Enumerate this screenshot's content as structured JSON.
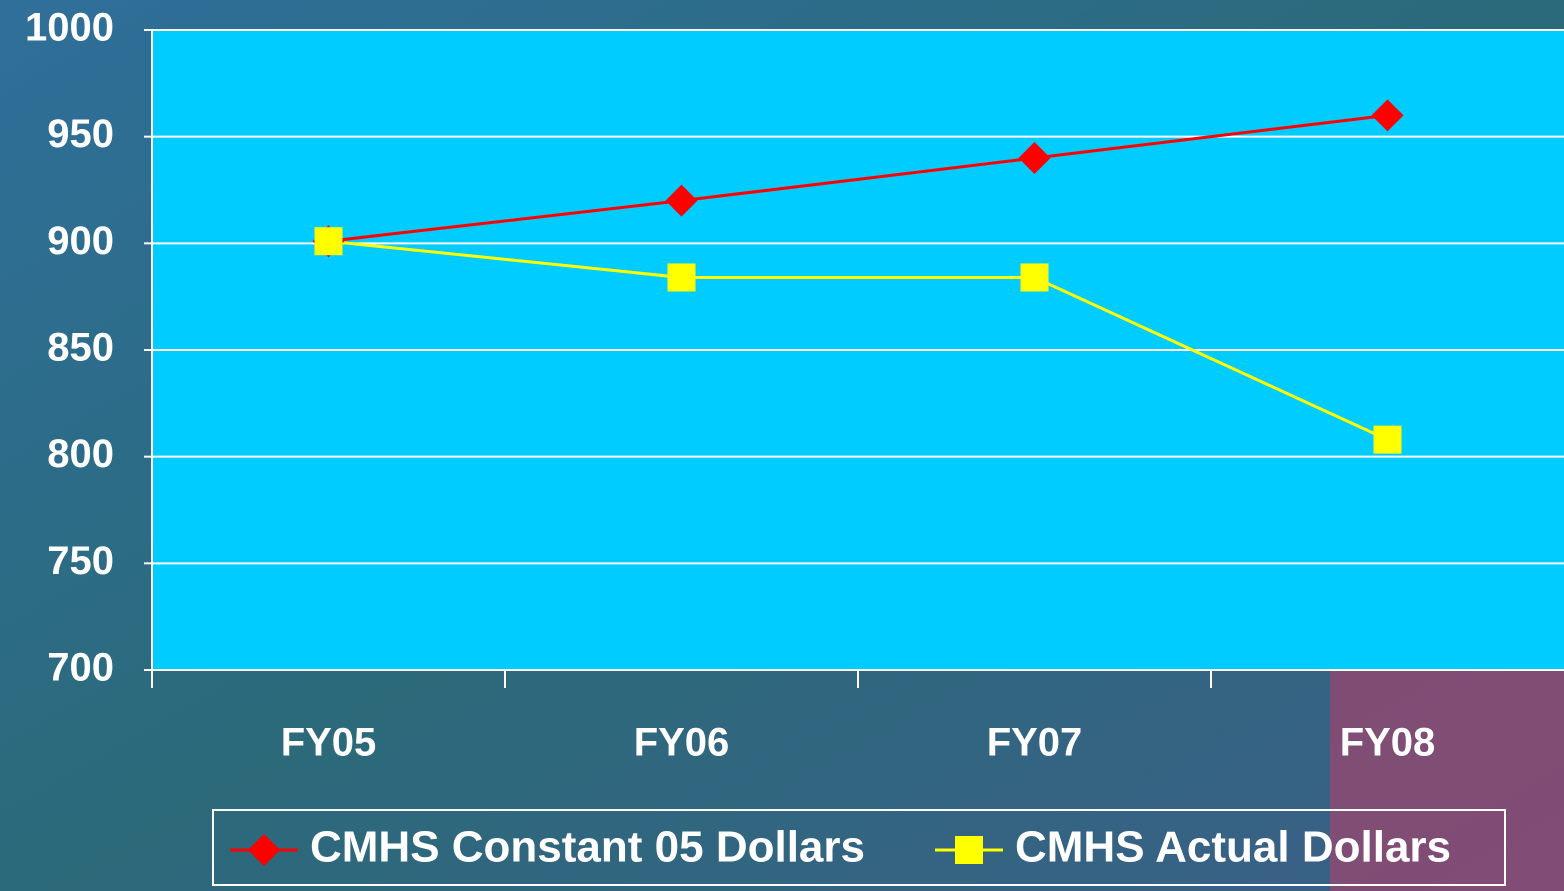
{
  "chart_data": {
    "type": "line",
    "categories": [
      "FY05",
      "FY06",
      "FY07",
      "FY08"
    ],
    "series": [
      {
        "name": "CMHS Constant 05 Dollars",
        "color": "#ff0000",
        "marker": "diamond",
        "values": [
          901,
          920,
          940,
          960
        ]
      },
      {
        "name": "CMHS Actual Dollars",
        "color": "#ffff00",
        "marker": "square",
        "values": [
          901,
          884,
          884,
          808
        ]
      }
    ],
    "ylim": [
      700,
      1000
    ],
    "yticks": [
      700,
      750,
      800,
      850,
      900,
      950,
      1000
    ],
    "grid": true,
    "legend": "bottom"
  }
}
